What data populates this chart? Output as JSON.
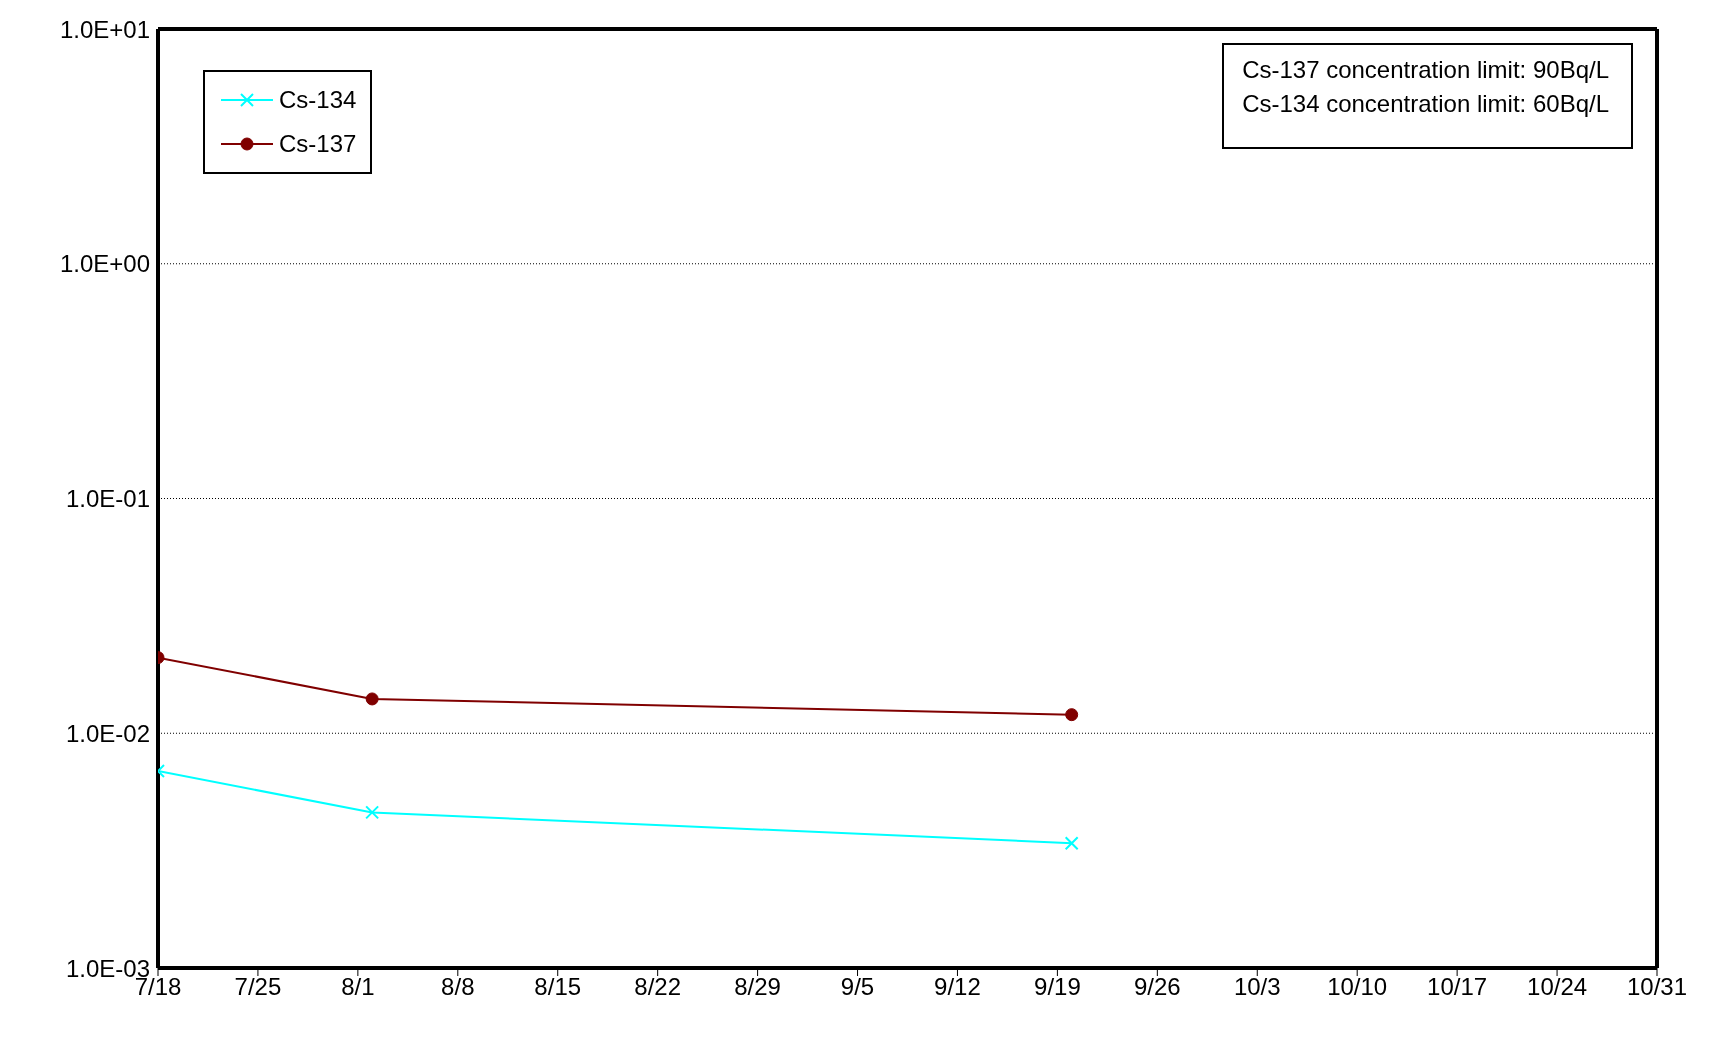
{
  "chart_data": {
    "type": "line",
    "x": [
      "--07-18",
      "--08-02",
      "--09-20"
    ],
    "series": [
      {
        "name": "Cs-134",
        "color": "#00ffff",
        "marker": "cross",
        "values": [
          0.0069,
          0.0046,
          0.0034
        ]
      },
      {
        "name": "Cs-137",
        "color": "#800000",
        "marker": "circle",
        "values": [
          0.021,
          0.014,
          0.012
        ]
      }
    ],
    "log": "y",
    "ylim": [
      0.001,
      10
    ],
    "yticks": [
      {
        "value": 0.001,
        "label": "1.0E-03"
      },
      {
        "value": 0.01,
        "label": "1.0E-02"
      },
      {
        "value": 0.1,
        "label": "1.0E-01"
      },
      {
        "value": 1,
        "label": "1.0E+00"
      },
      {
        "value": 10,
        "label": "1.0E+01"
      }
    ],
    "xlim": [
      "--07-18",
      "--10-31"
    ],
    "xticks": [
      {
        "value": "--07-18",
        "label": "7/18"
      },
      {
        "value": "--07-25",
        "label": "7/25"
      },
      {
        "value": "--08-01",
        "label": "8/1"
      },
      {
        "value": "--08-08",
        "label": "8/8"
      },
      {
        "value": "--08-15",
        "label": "8/15"
      },
      {
        "value": "--08-22",
        "label": "8/22"
      },
      {
        "value": "--08-29",
        "label": "8/29"
      },
      {
        "value": "--09-05",
        "label": "9/5"
      },
      {
        "value": "--09-12",
        "label": "9/12"
      },
      {
        "value": "--09-19",
        "label": "9/19"
      },
      {
        "value": "--09-26",
        "label": "9/26"
      },
      {
        "value": "--10-03",
        "label": "10/3"
      },
      {
        "value": "--10-10",
        "label": "10/10"
      },
      {
        "value": "--10-17",
        "label": "10/17"
      },
      {
        "value": "--10-24",
        "label": "10/24"
      },
      {
        "value": "--10-31",
        "label": "10/31"
      }
    ],
    "grid": "y",
    "legend": "top left",
    "line_style": "solid",
    "annotations": [
      "Cs-137 concentration limit: 90Bq/L",
      "Cs-134 concentration limit: 60Bq/L"
    ]
  }
}
